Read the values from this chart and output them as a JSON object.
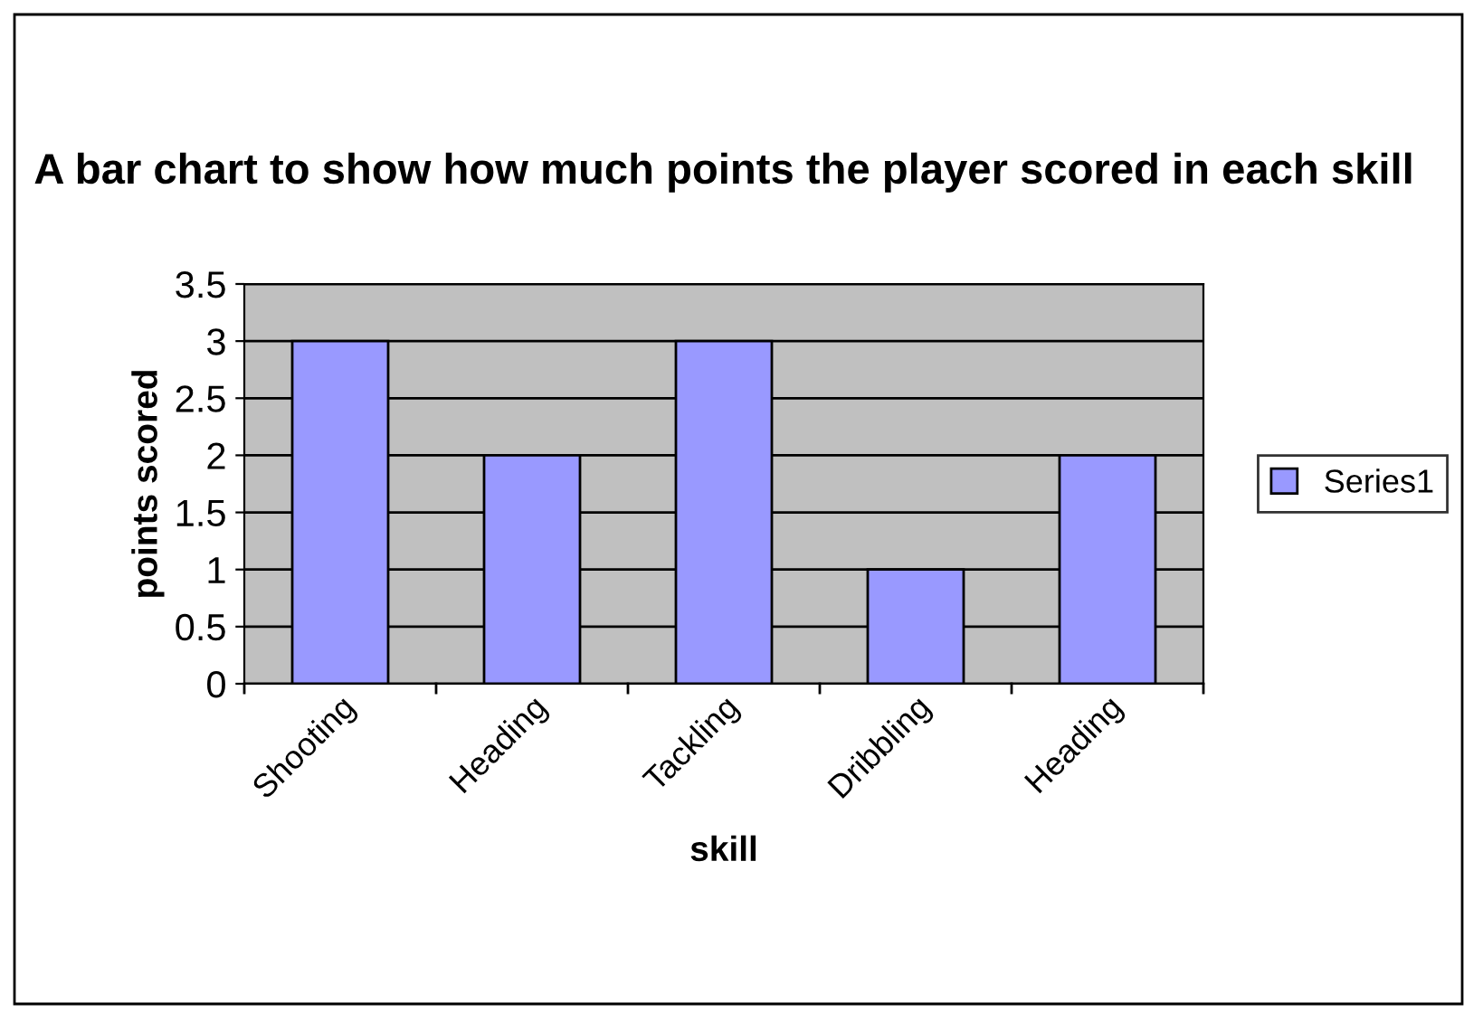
{
  "chart_data": {
    "type": "bar",
    "title": "A bar chart to show how much points the player scored in each skill",
    "xlabel": "skill",
    "ylabel": "points scored",
    "categories": [
      "Shooting",
      "Heading",
      "Tackling",
      "Dribbling",
      "Heading"
    ],
    "series": [
      {
        "name": "Series1",
        "color": "#9999ff",
        "values": [
          3,
          2,
          3,
          1,
          2
        ]
      }
    ],
    "ylim": [
      0,
      3.5
    ],
    "yticks": [
      0,
      0.5,
      1,
      1.5,
      2,
      2.5,
      3,
      3.5
    ],
    "grid": "y",
    "legend": "right"
  }
}
